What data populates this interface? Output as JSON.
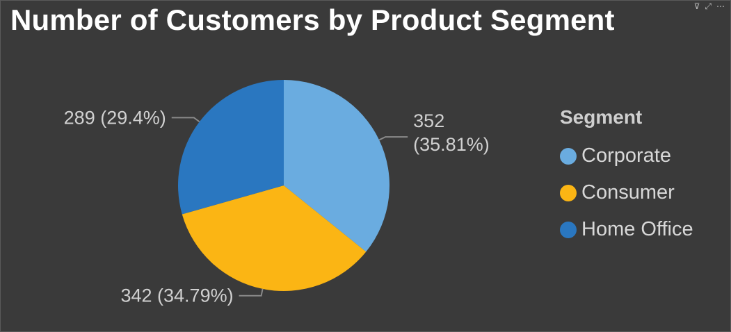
{
  "title": "Number of Customers by Product Segment",
  "header_icons": [
    {
      "name": "filter-icon",
      "glyph": "⊽"
    },
    {
      "name": "focus-mode-icon",
      "glyph": "⤢"
    },
    {
      "name": "more-options-icon",
      "glyph": "⋯"
    }
  ],
  "chart_data": {
    "type": "pie",
    "legend_title": "Segment",
    "legend_position": "right",
    "slices": [
      {
        "label": "Corporate",
        "value": 352,
        "percent": "35.81%",
        "color": "#6aace0"
      },
      {
        "label": "Consumer",
        "value": 342,
        "percent": "34.79%",
        "color": "#fbb514"
      },
      {
        "label": "Home Office",
        "value": 289,
        "percent": "29.4%",
        "color": "#2a77c0"
      }
    ],
    "data_labels": [
      "352 (35.81%)",
      "342 (34.79%)",
      "289 (29.4%)"
    ]
  }
}
